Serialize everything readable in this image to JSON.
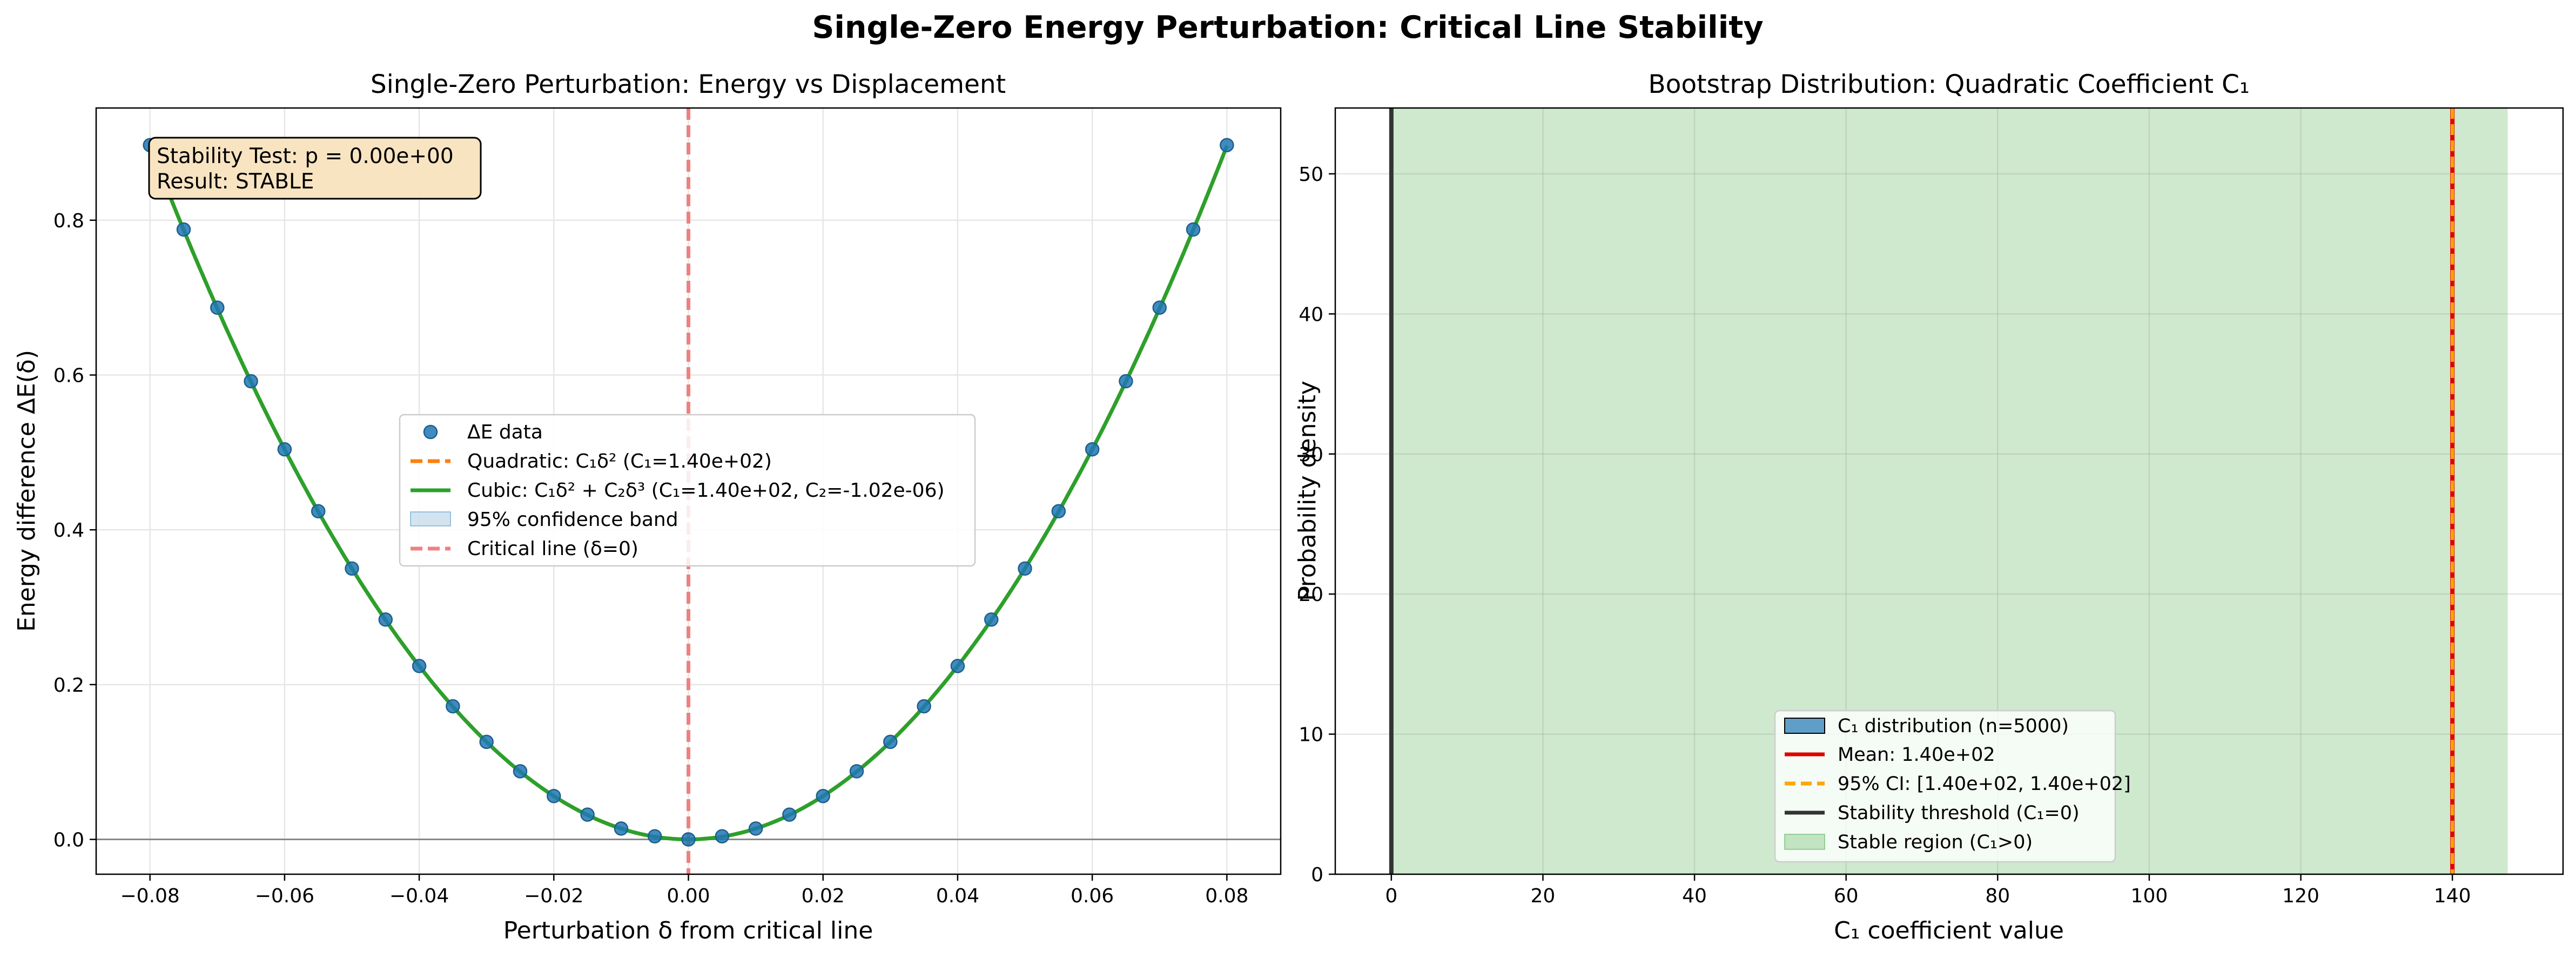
{
  "figure": {
    "suptitle": "Single-Zero Energy Perturbation: Critical Line Stability"
  },
  "chart_data": [
    {
      "type": "scatter",
      "title": "Single-Zero Perturbation: Energy vs Displacement",
      "xlabel": "Perturbation δ from critical line",
      "ylabel": "Energy difference ΔE(δ)",
      "xlim": [
        -0.088,
        0.088
      ],
      "ylim": [
        -0.045,
        0.945
      ],
      "xticks": [
        -0.08,
        -0.06,
        -0.04,
        -0.02,
        0.0,
        0.02,
        0.04,
        0.06,
        0.08
      ],
      "xtick_labels": [
        "−0.08",
        "−0.06",
        "−0.04",
        "−0.02",
        "0.00",
        "0.02",
        "0.04",
        "0.06",
        "0.08"
      ],
      "yticks": [
        0.0,
        0.2,
        0.4,
        0.6,
        0.8
      ],
      "ytick_labels": [
        "0.0",
        "0.2",
        "0.4",
        "0.6",
        "0.8"
      ],
      "grid": true,
      "legend_position": "center",
      "annotation": [
        "Stability Test: p = 0.00e+00",
        "Result: STABLE"
      ],
      "series": [
        {
          "name": "ΔE data",
          "kind": "points",
          "color": "#1f77b4",
          "x": [
            -0.08,
            -0.075,
            -0.07,
            -0.065,
            -0.06,
            -0.055,
            -0.05,
            -0.045,
            -0.04,
            -0.035,
            -0.03,
            -0.025,
            -0.02,
            -0.015,
            -0.01,
            -0.005,
            0.0,
            0.005,
            0.01,
            0.015,
            0.02,
            0.025,
            0.03,
            0.035,
            0.04,
            0.045,
            0.05,
            0.055,
            0.06,
            0.065,
            0.07,
            0.075,
            0.08
          ],
          "y": [
            0.897,
            0.788,
            0.687,
            0.592,
            0.504,
            0.424,
            0.35,
            0.284,
            0.224,
            0.172,
            0.126,
            0.088,
            0.056,
            0.032,
            0.014,
            0.004,
            0.0,
            0.004,
            0.014,
            0.032,
            0.056,
            0.088,
            0.126,
            0.172,
            0.224,
            0.284,
            0.35,
            0.424,
            0.504,
            0.592,
            0.687,
            0.788,
            0.897
          ]
        },
        {
          "name": "Quadratic: C₁δ² (C₁=1.40e+02)",
          "kind": "dashed-line",
          "color": "#ff7f0e",
          "C1": 140.0
        },
        {
          "name": "Cubic: C₁δ² + C₂δ³ (C₁=1.40e+02, C₂=-1.02e-06)",
          "kind": "line",
          "color": "#2ca02c",
          "C1": 140.0,
          "C2": -1.02e-06
        },
        {
          "name": "95% confidence band",
          "kind": "band",
          "color": "#1f77b4"
        },
        {
          "name": "Critical line (δ=0)",
          "kind": "vline",
          "color": "#f08080",
          "x": 0.0
        }
      ]
    },
    {
      "type": "bar",
      "title": "Bootstrap Distribution: Quadratic Coefficient C₁",
      "xlabel": "C₁ coefficient value",
      "ylabel": "Probability density",
      "xlim": [
        -7.4,
        154.6
      ],
      "ylim": [
        0,
        54.7
      ],
      "xticks": [
        0,
        20,
        40,
        60,
        80,
        100,
        120,
        140
      ],
      "xtick_labels": [
        "0",
        "20",
        "40",
        "60",
        "80",
        "100",
        "120",
        "140"
      ],
      "yticks": [
        0,
        10,
        20,
        30,
        40,
        50
      ],
      "ytick_labels": [
        "0",
        "10",
        "20",
        "30",
        "40",
        "50"
      ],
      "grid": true,
      "legend_position": "lower center",
      "stable_region": [
        0,
        147.3
      ],
      "series": [
        {
          "name": "C₁ distribution (n=5000)",
          "kind": "hist",
          "color": "#1f77b4"
        },
        {
          "name": "Mean: 1.40e+02",
          "kind": "vline",
          "color": "#e00000",
          "x": 140.0
        },
        {
          "name": "95% CI: [1.40e+02, 1.40e+02]",
          "kind": "dashed-vline",
          "color": "#ffa500",
          "x": [
            140.0,
            140.0
          ]
        },
        {
          "name": "Stability threshold (C₁=0)",
          "kind": "vline",
          "color": "#333333",
          "x": 0
        },
        {
          "name": "Stable region (C₁>0)",
          "kind": "region",
          "color": "#2ca02c"
        }
      ]
    }
  ]
}
